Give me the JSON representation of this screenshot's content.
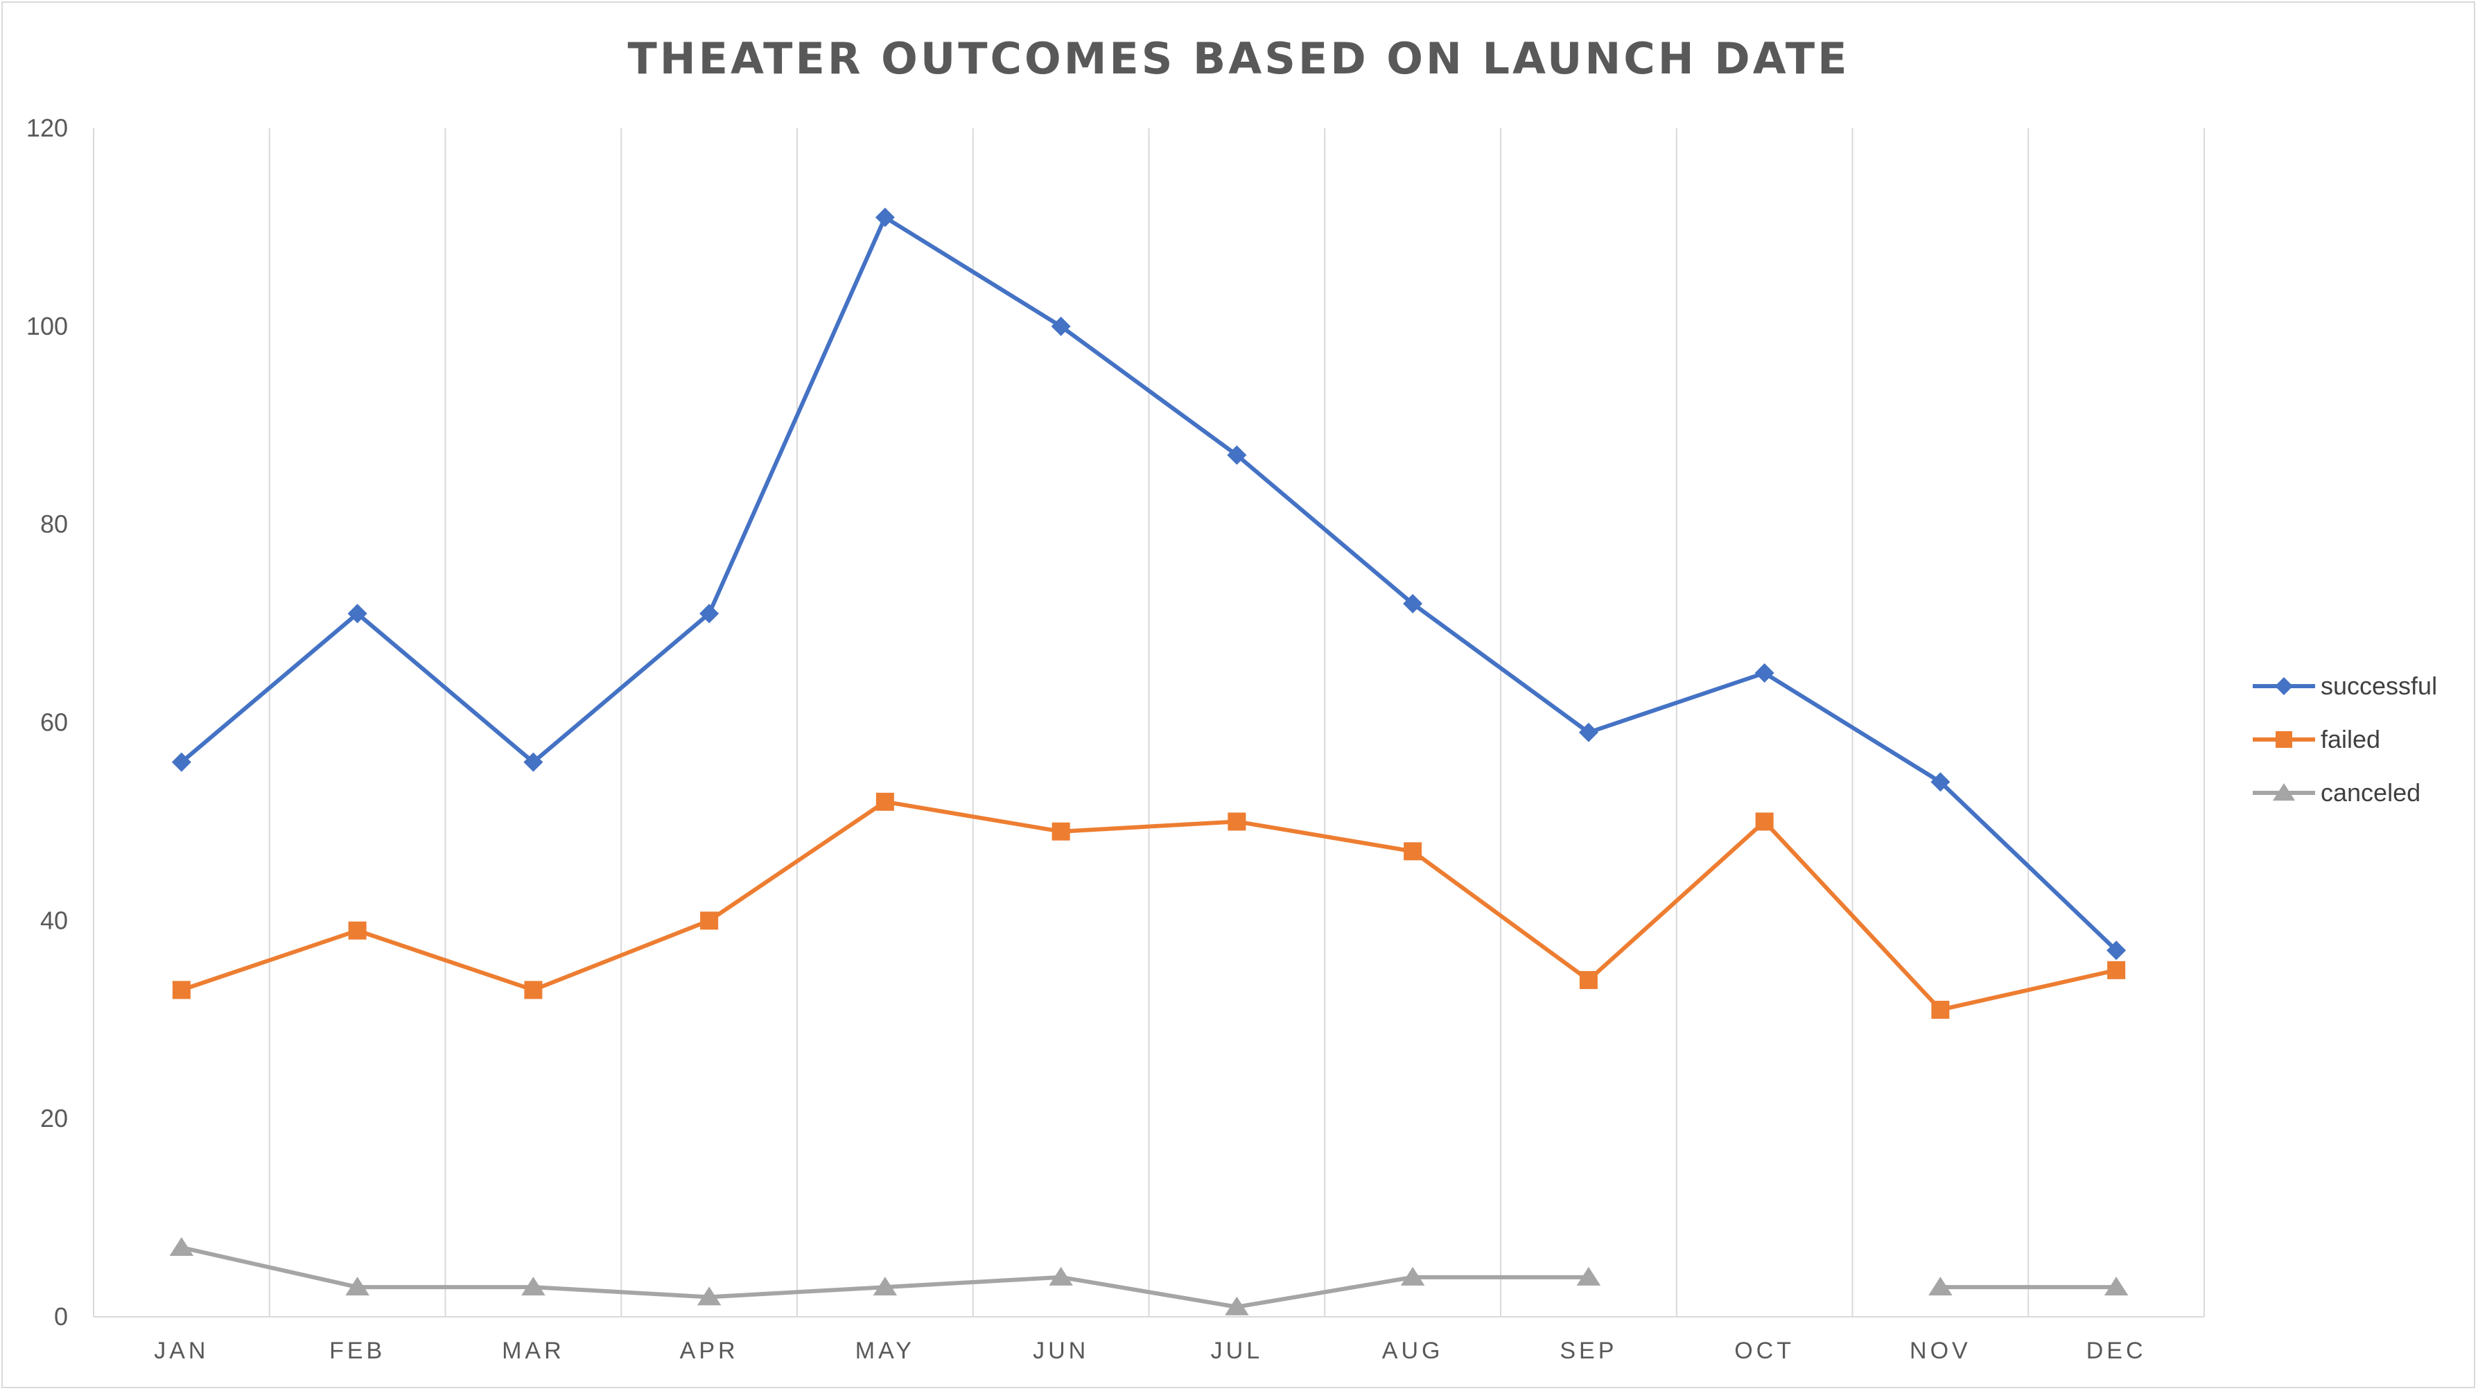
{
  "chart_data": {
    "type": "line",
    "title": "THEATER OUTCOMES BASED ON LAUNCH DATE",
    "xlabel": "",
    "ylabel": "",
    "categories": [
      "JAN",
      "FEB",
      "MAR",
      "APR",
      "MAY",
      "JUN",
      "JUL",
      "AUG",
      "SEP",
      "OCT",
      "NOV",
      "DEC"
    ],
    "ylim": [
      0,
      120
    ],
    "yticks": [
      "0",
      "20",
      "40",
      "60",
      "80",
      "100",
      "120"
    ],
    "grid": "vertical",
    "legend_position": "right",
    "series": [
      {
        "name": "successful",
        "color": "#4472C4",
        "marker": "diamond",
        "values": [
          56,
          71,
          56,
          71,
          111,
          100,
          87,
          72,
          59,
          65,
          54,
          37
        ]
      },
      {
        "name": "failed",
        "color": "#ED7D31",
        "marker": "square",
        "values": [
          33,
          39,
          33,
          40,
          52,
          49,
          50,
          47,
          34,
          50,
          31,
          35
        ]
      },
      {
        "name": "canceled",
        "color": "#A5A5A5",
        "marker": "triangle",
        "values": [
          7,
          3,
          3,
          2,
          3,
          4,
          1,
          4,
          4,
          null,
          3,
          3
        ]
      }
    ]
  }
}
